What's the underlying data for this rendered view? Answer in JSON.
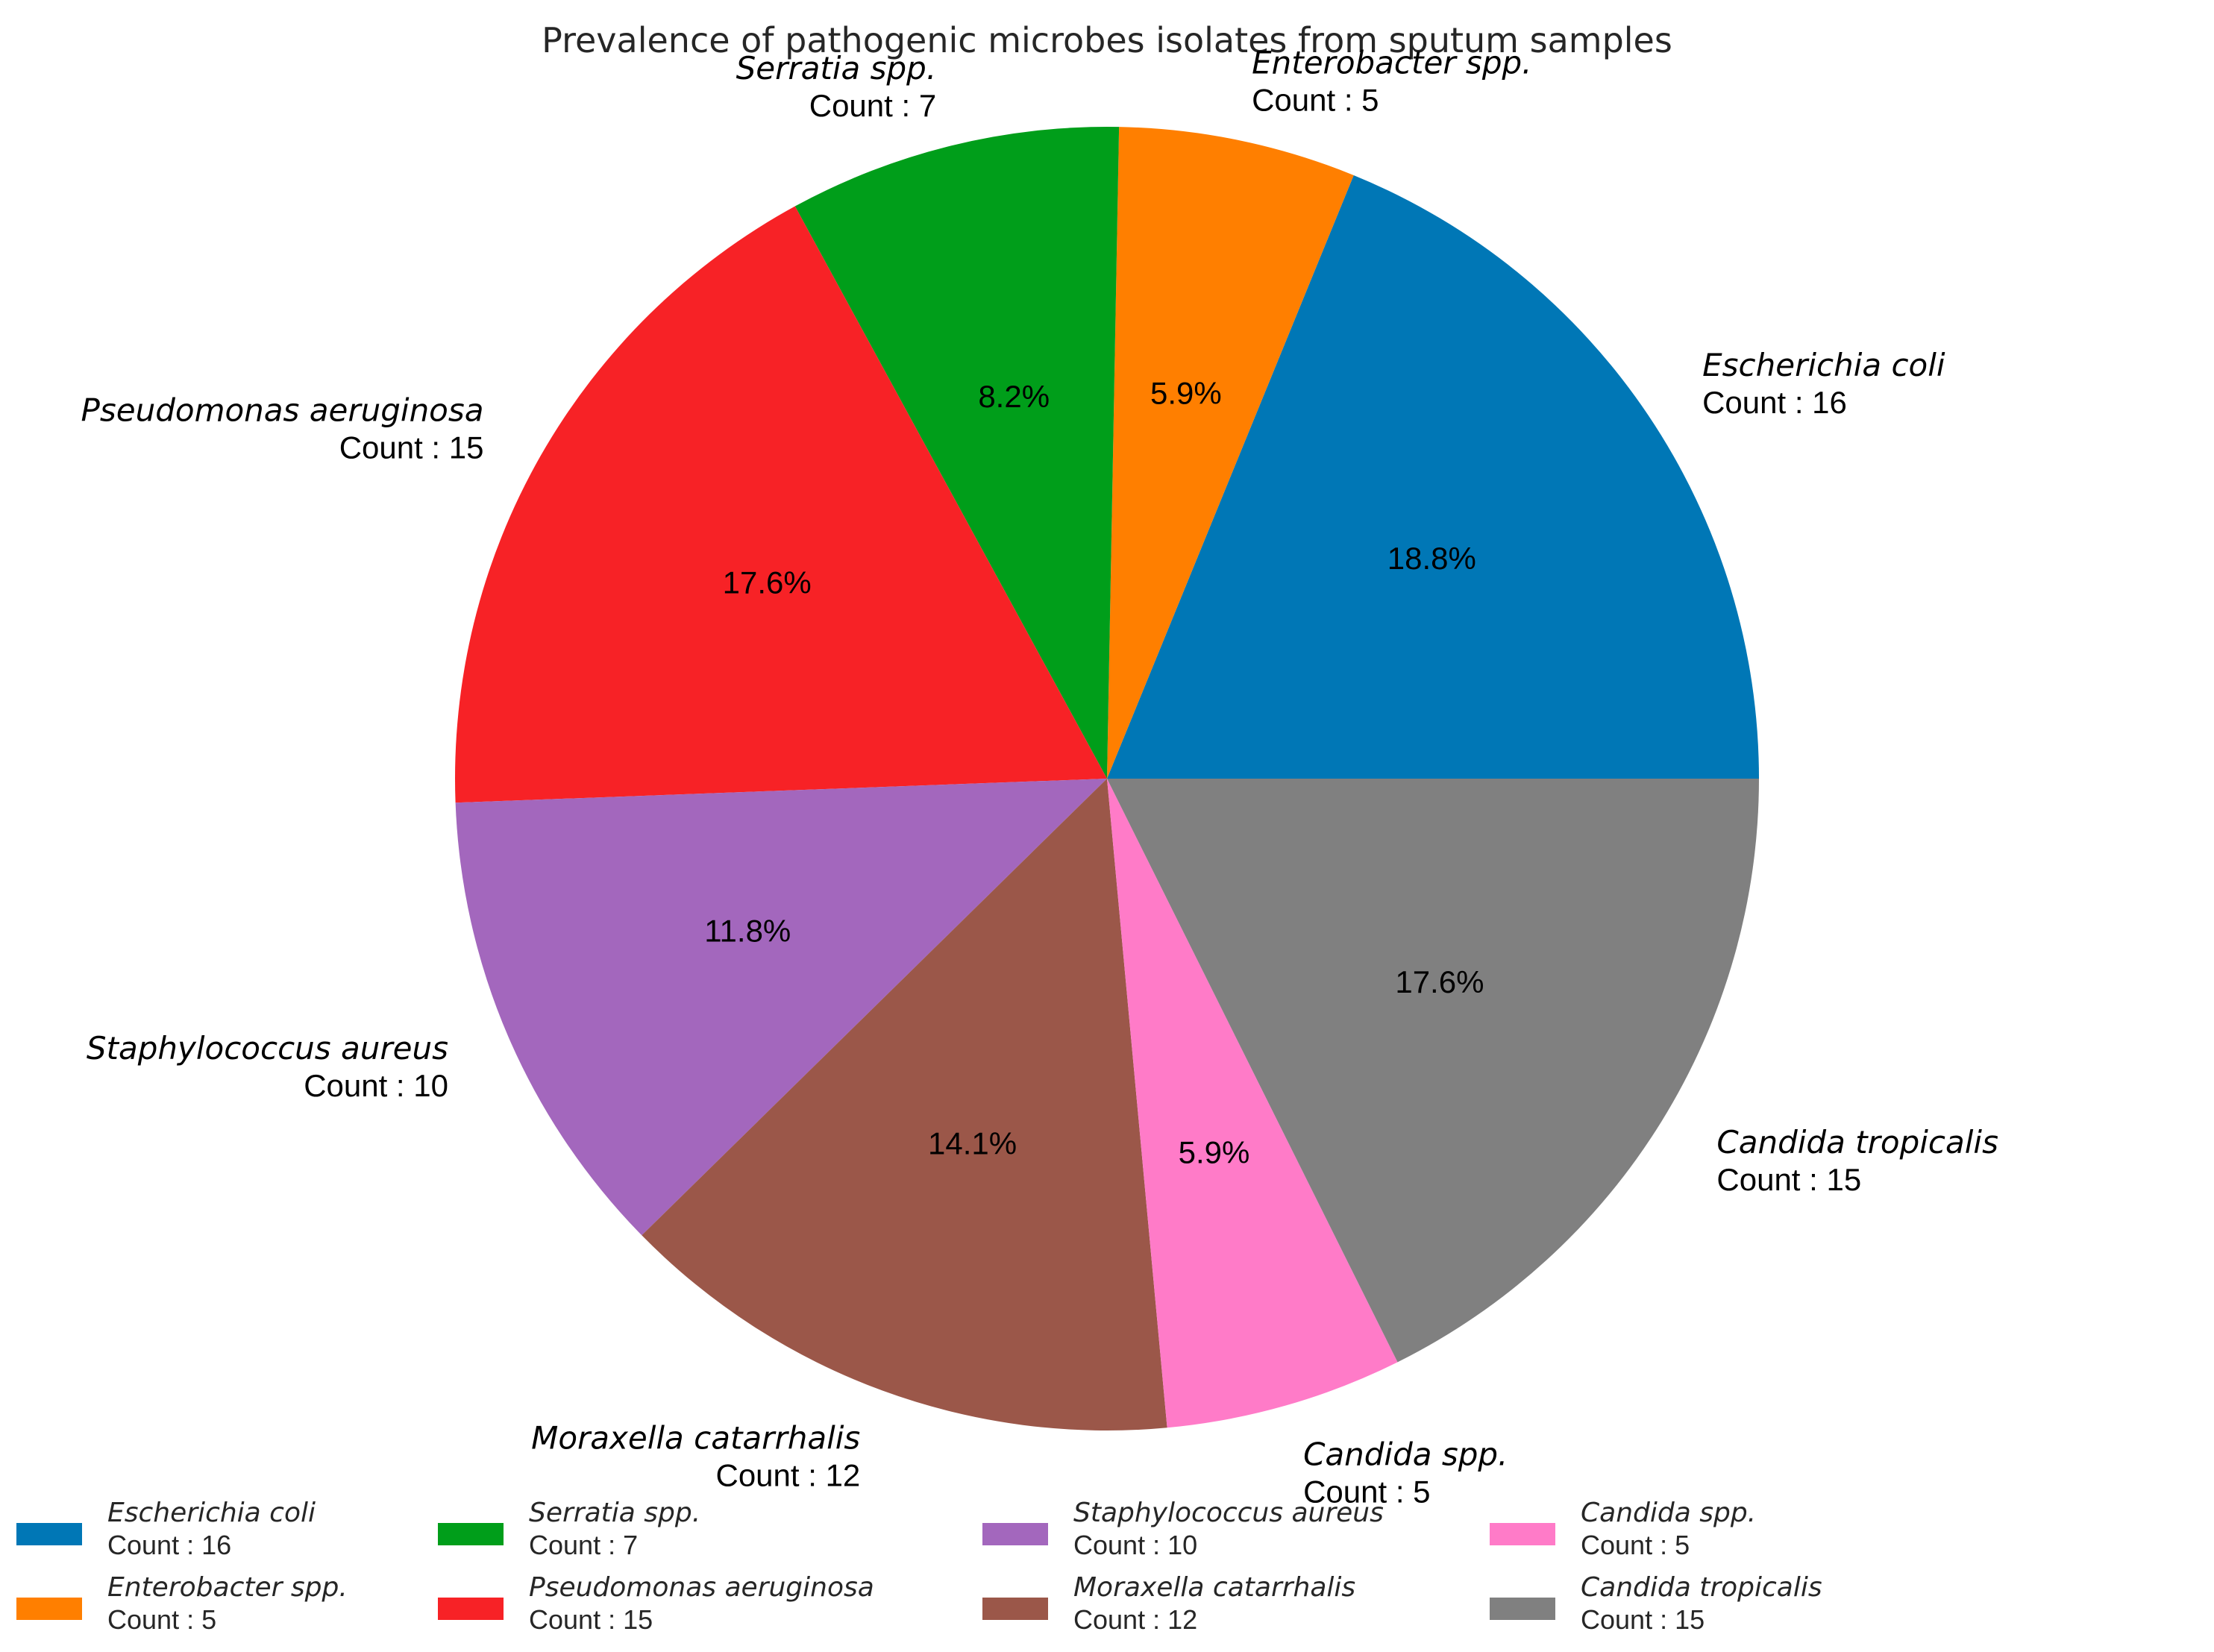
{
  "chart_data": {
    "type": "pie",
    "title": "Prevalence of pathogenic microbes isolates from sputum samples",
    "count_prefix": "Count : ",
    "start_angle_deg": 0,
    "direction": "counterclockwise",
    "legend_position": "bottom",
    "slices": [
      {
        "name": "Escherichia coli",
        "count": 16,
        "count_label": "Count : 16",
        "pct_label": "18.8%",
        "color": "#0077b6"
      },
      {
        "name": "Enterobacter spp.",
        "count": 5,
        "count_label": "Count : 5",
        "pct_label": "5.9%",
        "color": "#ff7f00"
      },
      {
        "name": "Serratia spp.",
        "count": 7,
        "count_label": "Count : 7",
        "pct_label": "8.2%",
        "color": "#009e1a"
      },
      {
        "name": "Pseudomonas aeruginosa",
        "count": 15,
        "count_label": "Count : 15",
        "pct_label": "17.6%",
        "color": "#f72226"
      },
      {
        "name": "Staphylococcus aureus",
        "count": 10,
        "count_label": "Count : 10",
        "pct_label": "11.8%",
        "color": "#a367bd"
      },
      {
        "name": "Moraxella catarrhalis",
        "count": 12,
        "count_label": "Count : 12",
        "pct_label": "14.1%",
        "color": "#9b5749"
      },
      {
        "name": "Candida spp.",
        "count": 5,
        "count_label": "Count : 5",
        "pct_label": "5.9%",
        "color": "#ff7bc8"
      },
      {
        "name": "Candida tropicalis",
        "count": 15,
        "count_label": "Count : 15",
        "pct_label": "17.6%",
        "color": "#808080"
      }
    ]
  }
}
